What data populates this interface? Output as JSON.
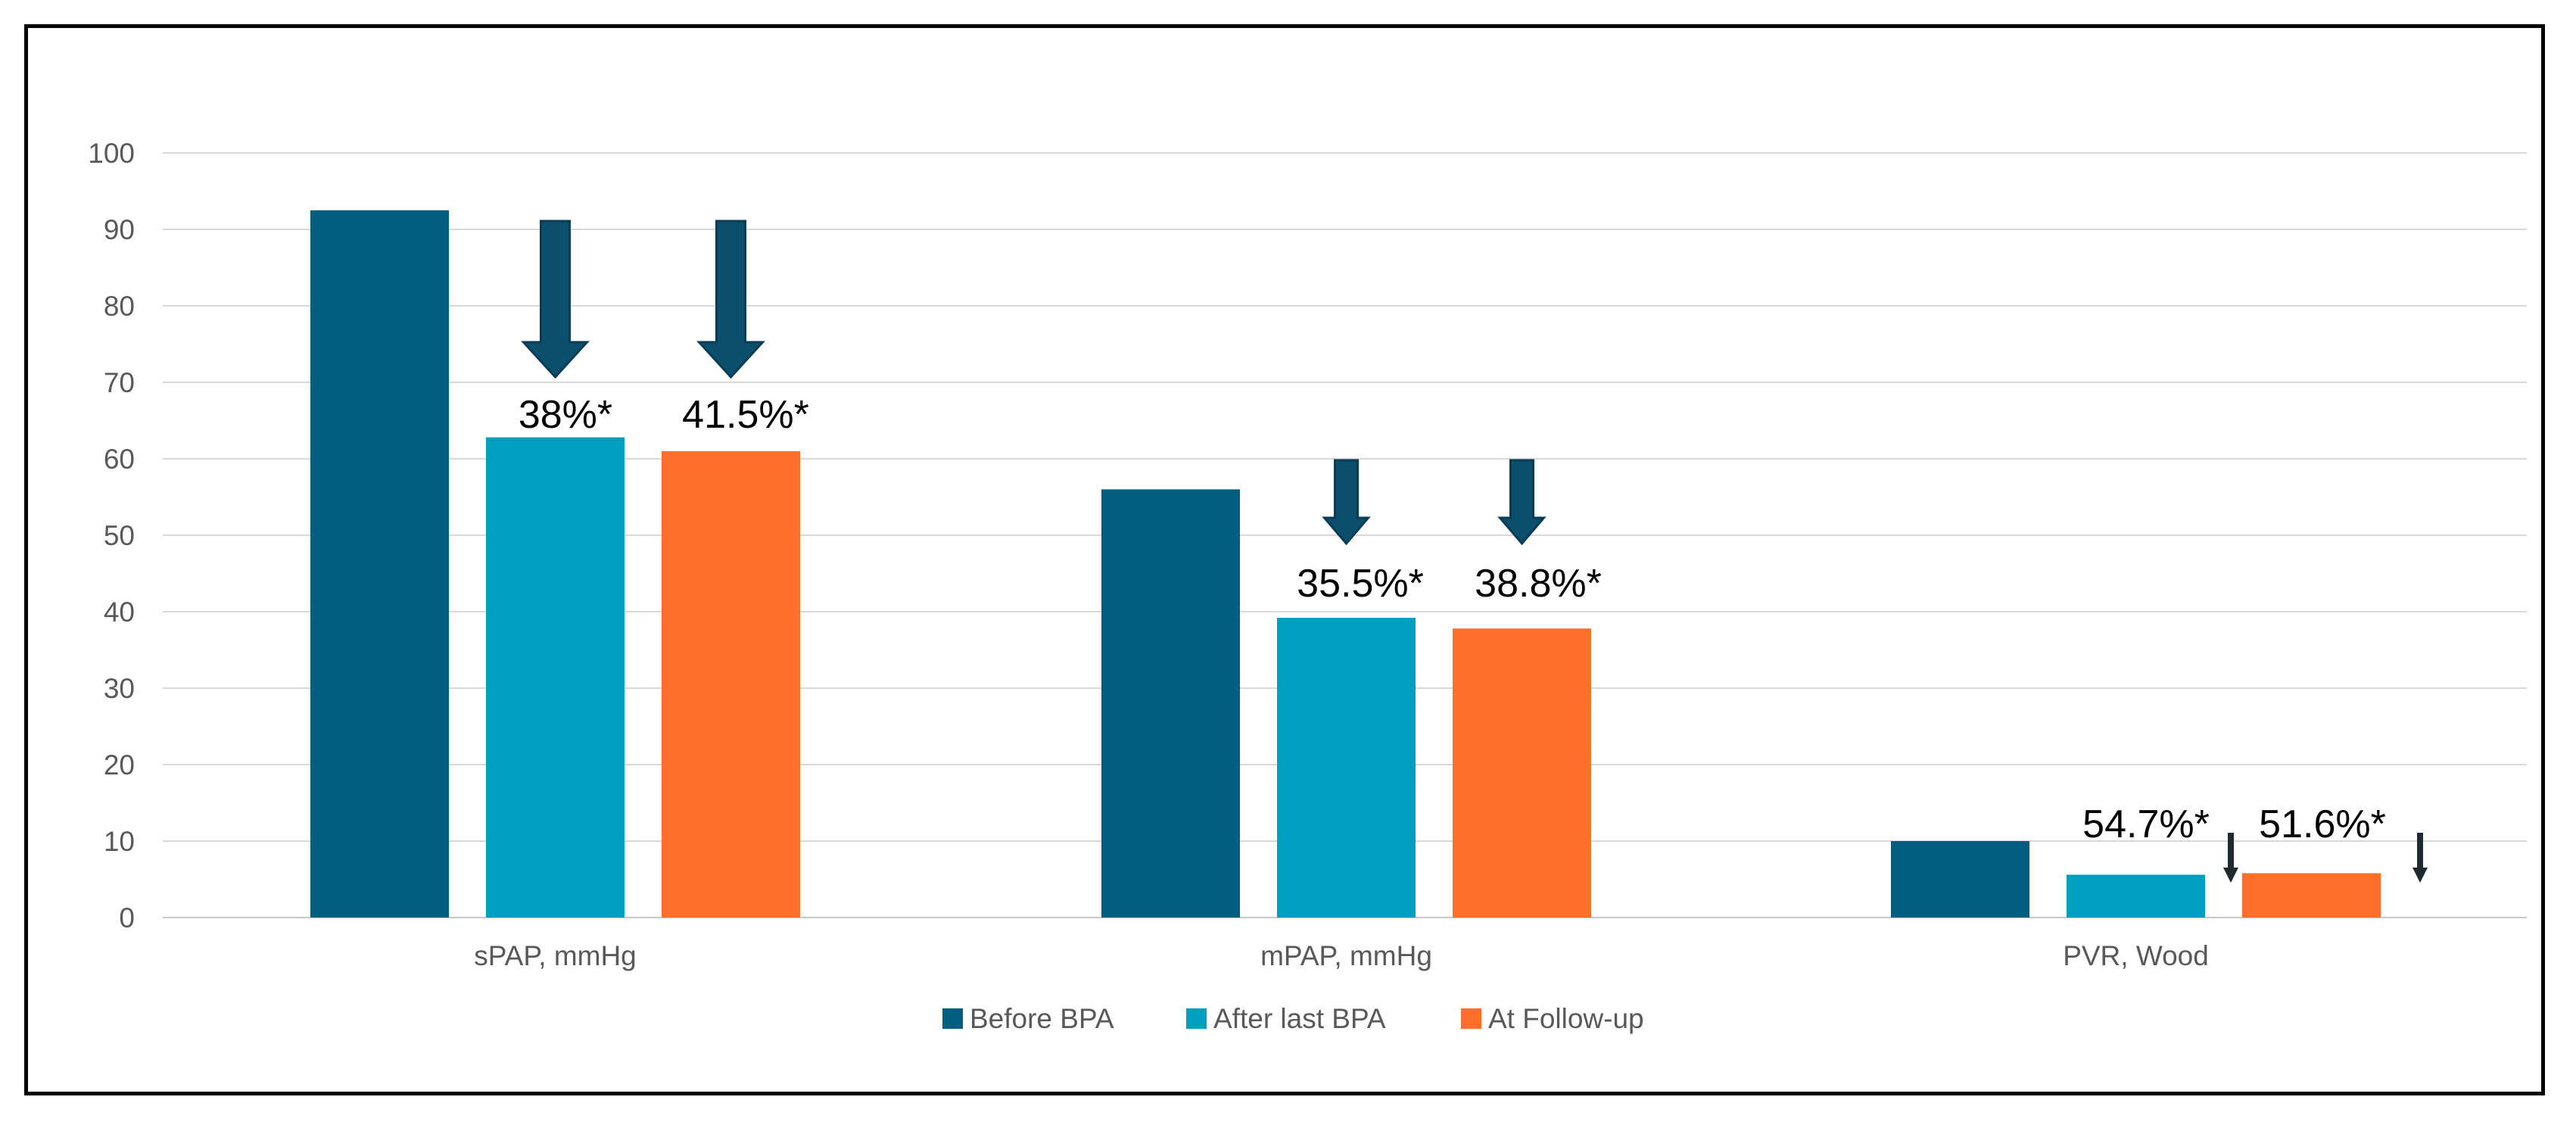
{
  "chart_data": {
    "type": "bar",
    "title": "",
    "xlabel": "",
    "ylabel": "",
    "ylim": [
      0,
      100
    ],
    "yticks": [
      0,
      10,
      20,
      30,
      40,
      50,
      60,
      70,
      80,
      90,
      100
    ],
    "grid": true,
    "categories": [
      "sPAP, mmHg",
      "mPAP, mmHg",
      "PVR, Wood"
    ],
    "series": [
      {
        "name": "Before BPA",
        "color": "#005E80",
        "values": [
          92.5,
          56,
          10
        ]
      },
      {
        "name": "After last BPA",
        "color": "#009FBF",
        "values": [
          62.8,
          39.2,
          5.6
        ]
      },
      {
        "name": "At Follow-up",
        "color": "#FF6F2C",
        "values": [
          61,
          37.8,
          5.8
        ]
      }
    ],
    "legend_position": "bottom",
    "annotations": [
      {
        "category": 0,
        "series": 1,
        "text": "38%*"
      },
      {
        "category": 0,
        "series": 2,
        "text": "41.5%*"
      },
      {
        "category": 1,
        "series": 1,
        "text": "35.5%*"
      },
      {
        "category": 1,
        "series": 2,
        "text": "38.8%*"
      },
      {
        "category": 2,
        "series": 1,
        "text": "54.7%*"
      },
      {
        "category": 2,
        "series": 2,
        "text": "51.6%*"
      }
    ],
    "arrow_color": "#0B4F6C"
  }
}
